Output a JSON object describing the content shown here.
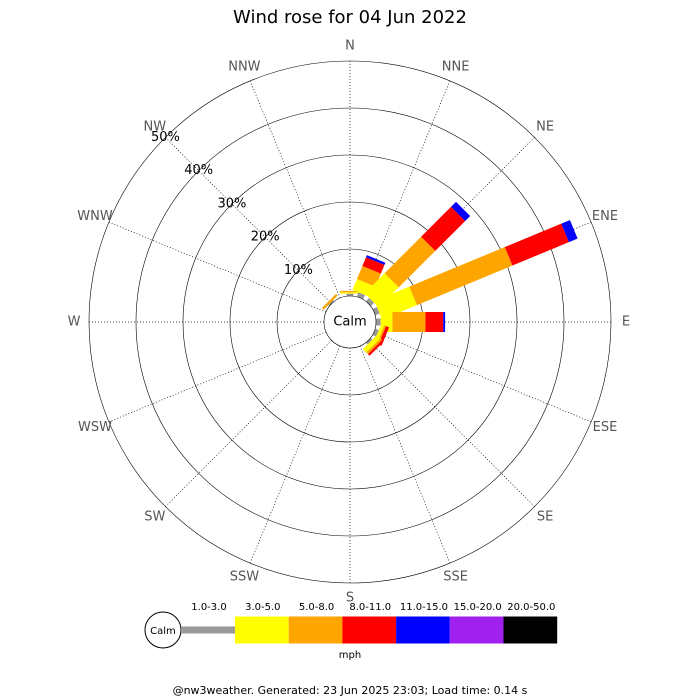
{
  "chart_data": {
    "type": "windrose",
    "title": "Wind rose for 04 Jun 2022",
    "directions": [
      "N",
      "NNE",
      "NE",
      "ENE",
      "E",
      "ESE",
      "SE",
      "SSE",
      "S",
      "SSW",
      "SW",
      "WSW",
      "W",
      "WNW",
      "NW",
      "NNW"
    ],
    "rlim": [
      0,
      50
    ],
    "rticks": [
      {
        "value": 10,
        "label": "10%"
      },
      {
        "value": 20,
        "label": "20%"
      },
      {
        "value": 30,
        "label": "30%"
      },
      {
        "value": 40,
        "label": "40%"
      },
      {
        "value": 50,
        "label": "50%"
      }
    ],
    "center_label": "Calm",
    "series": [
      {
        "name": "1.0-3.0",
        "color": "#999999",
        "values": [
          0.5,
          1,
          1,
          1,
          1,
          0.8,
          0.5,
          0,
          0,
          0,
          0,
          0,
          0,
          0,
          0.3,
          0
        ]
      },
      {
        "name": "3.0-5.0",
        "color": "#ffff00",
        "values": [
          0.3,
          2.5,
          6,
          8,
          2.5,
          0.7,
          1,
          0,
          0,
          0,
          0,
          0,
          0,
          0,
          0,
          0
        ]
      },
      {
        "name": "5.0-8.0",
        "color": "#ffa500",
        "values": [
          0.3,
          3,
          11,
          22,
          7,
          0.4,
          0.5,
          0,
          0,
          0,
          0,
          0,
          0,
          0,
          0.5,
          0
        ]
      },
      {
        "name": "8.0-11.0",
        "color": "#ff0000",
        "values": [
          0,
          2,
          9,
          13,
          3.8,
          0.7,
          0.5,
          0,
          0,
          0,
          0,
          0,
          0,
          0,
          0,
          0
        ]
      },
      {
        "name": "11.0-15.0",
        "color": "#0000ff",
        "values": [
          0,
          0.5,
          1.5,
          2,
          0.4,
          0,
          0,
          0,
          0,
          0,
          0,
          0,
          0,
          0,
          0,
          0
        ]
      },
      {
        "name": "15.0-20.0",
        "color": "#a020f0",
        "values": [
          0,
          0,
          0,
          0,
          0,
          0,
          0,
          0,
          0,
          0,
          0,
          0,
          0,
          0,
          0,
          0
        ]
      },
      {
        "name": "20.0-50.0",
        "color": "#000000",
        "values": [
          0,
          0,
          0,
          0,
          0,
          0,
          0,
          0,
          0,
          0,
          0,
          0,
          0,
          0,
          0,
          0
        ]
      }
    ],
    "legend_center_label": "Calm",
    "unit": "mph",
    "footer": "@nw3weather. Generated: 23 Jun 2025 23:03; Load time: 0.14 s"
  }
}
